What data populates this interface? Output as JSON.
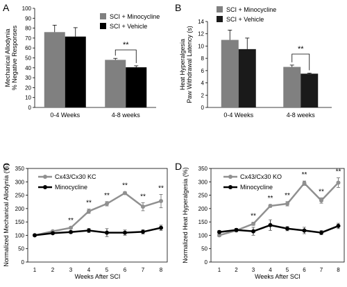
{
  "chart_data": [
    {
      "panel": "A",
      "type": "bar",
      "ylabel": "Mechanical Allodynia\n% Negative Responses",
      "xlabel": "",
      "ylim": [
        0,
        100
      ],
      "yticks": [
        0,
        10,
        20,
        30,
        40,
        50,
        60,
        70,
        80,
        90,
        100
      ],
      "categories": [
        "0-4 Weeks",
        "4-8 weeks"
      ],
      "series": [
        {
          "name": "SCI + Minocycline",
          "color": "#808080",
          "values": [
            76,
            48
          ],
          "errors": [
            7,
            1.5
          ]
        },
        {
          "name": "SCI + Vehicle",
          "color": "#000000",
          "values": [
            71.5,
            40.5
          ],
          "errors": [
            9,
            1.5
          ]
        }
      ],
      "annotation": "**",
      "legend": "top-right"
    },
    {
      "panel": "B",
      "type": "bar",
      "ylabel": "Heat Hyperalgesia\nPaw Withdrawal Latency (s)",
      "xlabel": "",
      "ylim": [
        0,
        14
      ],
      "yticks": [
        0,
        2,
        4,
        6,
        8,
        10,
        12,
        14
      ],
      "categories": [
        "0-4 Weeks",
        "4-8 weeks"
      ],
      "series": [
        {
          "name": "SCI + Minocycline",
          "color": "#808080",
          "values": [
            11,
            6.6
          ],
          "errors": [
            1.6,
            0.3
          ]
        },
        {
          "name": "SCI + Vehicle",
          "color": "#1a1a1a",
          "values": [
            9.5,
            5.5
          ],
          "errors": [
            1.8,
            0.1
          ]
        }
      ],
      "annotation": "**",
      "legend": "top-right"
    },
    {
      "panel": "C",
      "type": "line",
      "xlabel": "Weeks After SCI",
      "ylabel": "Normalized Mechanical  Allodynia (%)",
      "ylim": [
        0,
        350
      ],
      "yticks": [
        0,
        50,
        100,
        150,
        200,
        250,
        300,
        350
      ],
      "x": [
        1,
        2,
        3,
        4,
        5,
        6,
        7,
        8
      ],
      "series": [
        {
          "name": "Cx43/Cx30 KC",
          "color": "#909090",
          "values": [
            100,
            115,
            128,
            190,
            218,
            258,
            207,
            228
          ],
          "errors": [
            3,
            3,
            4,
            8,
            8,
            5,
            15,
            25
          ]
        },
        {
          "name": "Minocycline",
          "color": "#000000",
          "values": [
            100,
            108,
            112,
            118,
            110,
            110,
            113,
            128
          ],
          "errors": [
            4,
            4,
            5,
            8,
            15,
            10,
            8,
            10
          ]
        }
      ],
      "stars": [
        3,
        4,
        5,
        6,
        7,
        8
      ],
      "star_label": "**",
      "legend": "top-left"
    },
    {
      "panel": "D",
      "type": "line",
      "xlabel": "Weeks After SCI",
      "ylabel": "Normalized Heat Hyperalgesia (%)",
      "ylim": [
        0,
        350
      ],
      "yticks": [
        0,
        50,
        100,
        150,
        200,
        250,
        300,
        350
      ],
      "x": [
        1,
        2,
        3,
        4,
        5,
        6,
        7,
        8
      ],
      "series": [
        {
          "name": "Cx43/Cx30 KO",
          "color": "#909090",
          "values": [
            100,
            118,
            143,
            210,
            218,
            295,
            230,
            297
          ],
          "errors": [
            5,
            5,
            6,
            5,
            8,
            8,
            10,
            18
          ]
        },
        {
          "name": "Minocycline",
          "color": "#000000",
          "values": [
            112,
            120,
            115,
            138,
            125,
            118,
            110,
            135
          ],
          "errors": [
            6,
            6,
            15,
            20,
            8,
            12,
            8,
            10
          ]
        }
      ],
      "stars": [
        3,
        4,
        5,
        6,
        7,
        8
      ],
      "star_label": "**",
      "legend": "top-left"
    }
  ],
  "panel_labels": [
    "A",
    "B",
    "C",
    "D"
  ]
}
